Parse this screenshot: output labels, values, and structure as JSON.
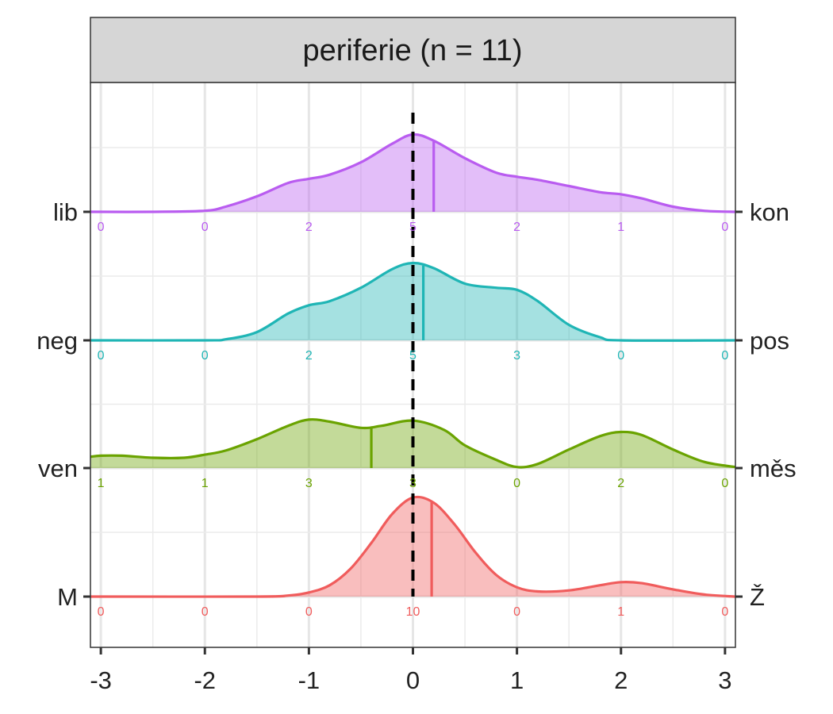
{
  "chart_data": {
    "type": "ridgeline",
    "title": "periferie (n = 11)",
    "xlim": [
      -3.1,
      3.1
    ],
    "x_ticks": [
      -3,
      -2,
      -1,
      0,
      1,
      2,
      3
    ],
    "x_tick_labels": [
      "-3",
      "-2",
      "-1",
      "0",
      "1",
      "2",
      "3"
    ],
    "reference_line_x": 0,
    "grid": true,
    "count_positions": [
      -3,
      -2,
      -1,
      0,
      1,
      2,
      3
    ],
    "series": [
      {
        "left_label": "M",
        "right_label": "Ž",
        "color": "#f05c5c",
        "counts": [
          "0",
          "0",
          "0",
          "10",
          "0",
          "1",
          "0"
        ],
        "mean": 0.18,
        "density_x": [
          -3.1,
          -1.5,
          -1.2,
          -1.0,
          -0.8,
          -0.6,
          -0.4,
          -0.2,
          0.0,
          0.2,
          0.4,
          0.6,
          0.8,
          1.0,
          1.2,
          1.5,
          1.8,
          2.0,
          2.2,
          2.5,
          2.8,
          3.1
        ],
        "density_y": [
          0.0,
          0.0,
          0.01,
          0.04,
          0.11,
          0.27,
          0.52,
          0.8,
          0.96,
          0.91,
          0.7,
          0.43,
          0.21,
          0.09,
          0.05,
          0.06,
          0.11,
          0.14,
          0.13,
          0.07,
          0.02,
          0.0
        ]
      },
      {
        "left_label": "ven",
        "right_label": "měs",
        "color": "#6aa300",
        "counts": [
          "1",
          "1",
          "3",
          "3",
          "0",
          "2",
          "0"
        ],
        "mean": -0.4,
        "density_x": [
          -3.1,
          -3.0,
          -2.8,
          -2.5,
          -2.2,
          -2.0,
          -1.8,
          -1.5,
          -1.2,
          -1.0,
          -0.8,
          -0.5,
          -0.3,
          0.0,
          0.3,
          0.5,
          0.8,
          1.0,
          1.2,
          1.5,
          1.8,
          2.0,
          2.2,
          2.5,
          2.8,
          3.1
        ],
        "density_y": [
          0.11,
          0.12,
          0.12,
          0.1,
          0.1,
          0.13,
          0.17,
          0.28,
          0.41,
          0.47,
          0.45,
          0.39,
          0.41,
          0.46,
          0.37,
          0.22,
          0.08,
          0.01,
          0.04,
          0.18,
          0.31,
          0.35,
          0.32,
          0.18,
          0.06,
          0.01
        ]
      },
      {
        "left_label": "neg",
        "right_label": "pos",
        "color": "#1fb5b5",
        "counts": [
          "0",
          "0",
          "2",
          "5",
          "3",
          "0",
          "0"
        ],
        "mean": 0.1,
        "density_x": [
          -3.1,
          -2.0,
          -1.8,
          -1.5,
          -1.2,
          -1.0,
          -0.8,
          -0.5,
          -0.2,
          0.0,
          0.2,
          0.5,
          0.8,
          1.0,
          1.2,
          1.5,
          1.8,
          2.0,
          3.1
        ],
        "density_y": [
          0.0,
          0.0,
          0.01,
          0.08,
          0.26,
          0.34,
          0.38,
          0.51,
          0.69,
          0.75,
          0.7,
          0.55,
          0.51,
          0.49,
          0.38,
          0.15,
          0.03,
          0.0,
          0.0
        ]
      },
      {
        "left_label": "lib",
        "right_label": "kon",
        "color": "#b95cf0",
        "counts": [
          "0",
          "0",
          "2",
          "5",
          "2",
          "1",
          "0"
        ],
        "mean": 0.2,
        "density_x": [
          -3.1,
          -2.5,
          -2.0,
          -1.8,
          -1.5,
          -1.2,
          -1.0,
          -0.8,
          -0.5,
          -0.2,
          0.0,
          0.2,
          0.5,
          0.8,
          1.0,
          1.2,
          1.5,
          1.8,
          2.0,
          2.2,
          2.5,
          2.8,
          3.1
        ],
        "density_y": [
          0.0,
          0.0,
          0.01,
          0.05,
          0.15,
          0.28,
          0.32,
          0.36,
          0.48,
          0.66,
          0.75,
          0.69,
          0.52,
          0.38,
          0.34,
          0.31,
          0.25,
          0.19,
          0.17,
          0.13,
          0.05,
          0.01,
          0.0
        ]
      }
    ]
  }
}
